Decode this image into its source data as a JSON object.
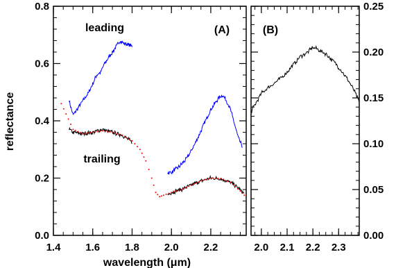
{
  "chart_data": [
    {
      "panel_label": "(A)",
      "type": "line",
      "xlabel": "wavelength (μm)",
      "ylabel": "reflectance",
      "xlim": [
        1.4,
        2.38
      ],
      "ylim": [
        0.0,
        0.8
      ],
      "xticks": [
        "1.4",
        "1.6",
        "1.8",
        "2.0",
        "2.2"
      ],
      "yticks": [
        "0.0",
        "0.2",
        "0.4",
        "0.6",
        "0.8"
      ],
      "grid": false,
      "annotations": [
        {
          "text": "leading",
          "x": 1.6,
          "y": 0.71
        },
        {
          "text": "trailing",
          "x": 1.6,
          "y": 0.24
        }
      ],
      "series": [
        {
          "label": "leading",
          "color": "#0000ff",
          "segments": [
            {
              "x": [
                1.48,
                1.5,
                1.52,
                1.55,
                1.58,
                1.6,
                1.62,
                1.64,
                1.66,
                1.68,
                1.7,
                1.72,
                1.74,
                1.76,
                1.78,
                1.8
              ],
              "y": [
                0.47,
                0.42,
                0.44,
                0.47,
                0.5,
                0.53,
                0.56,
                0.57,
                0.6,
                0.62,
                0.64,
                0.66,
                0.68,
                0.67,
                0.665,
                0.66
              ]
            },
            {
              "x": [
                1.98,
                2.0,
                2.04,
                2.08,
                2.12,
                2.16,
                2.2,
                2.24,
                2.26,
                2.28,
                2.3,
                2.32,
                2.34,
                2.36
              ],
              "y": [
                0.22,
                0.22,
                0.24,
                0.27,
                0.32,
                0.38,
                0.44,
                0.48,
                0.49,
                0.47,
                0.44,
                0.39,
                0.34,
                0.31
              ]
            }
          ]
        },
        {
          "label": "trailing",
          "color": "#000000",
          "segments": [
            {
              "x": [
                1.48,
                1.5,
                1.55,
                1.6,
                1.65,
                1.7,
                1.75,
                1.8
              ],
              "y": [
                0.37,
                0.36,
                0.355,
                0.36,
                0.37,
                0.36,
                0.35,
                0.325
              ]
            },
            {
              "x": [
                1.98,
                2.0,
                2.05,
                2.1,
                2.15,
                2.2,
                2.25,
                2.3,
                2.34,
                2.37
              ],
              "y": [
                0.14,
                0.15,
                0.16,
                0.175,
                0.19,
                0.2,
                0.198,
                0.185,
                0.165,
                0.145
              ]
            }
          ]
        },
        {
          "label": "dotted",
          "color": "#ff0000",
          "style": "dotted",
          "x": [
            1.44,
            1.5,
            1.55,
            1.6,
            1.65,
            1.7,
            1.75,
            1.8,
            1.84,
            1.87,
            1.9,
            1.92,
            1.94,
            1.96,
            2.0,
            2.05,
            2.1,
            2.15,
            2.2,
            2.25,
            2.3,
            2.35,
            2.37
          ],
          "y": [
            0.46,
            0.37,
            0.355,
            0.36,
            0.365,
            0.36,
            0.35,
            0.33,
            0.3,
            0.26,
            0.2,
            0.15,
            0.135,
            0.14,
            0.15,
            0.16,
            0.175,
            0.19,
            0.2,
            0.198,
            0.185,
            0.155,
            0.14
          ]
        }
      ]
    },
    {
      "panel_label": "(B)",
      "type": "line",
      "xlim": [
        1.96,
        2.38
      ],
      "ylim": [
        0.0,
        0.25
      ],
      "xticks": [
        "2.0",
        "2.1",
        "2.2",
        "2.3"
      ],
      "yticks": [
        "0.00",
        "0.05",
        "0.10",
        "0.15",
        "0.20",
        "0.25"
      ],
      "grid": false,
      "series": [
        {
          "color": "#000000",
          "x": [
            1.96,
            1.98,
            2.0,
            2.03,
            2.06,
            2.09,
            2.12,
            2.15,
            2.18,
            2.2,
            2.22,
            2.25,
            2.28,
            2.31,
            2.34,
            2.36,
            2.38
          ],
          "y": [
            0.135,
            0.145,
            0.155,
            0.162,
            0.168,
            0.175,
            0.185,
            0.195,
            0.2,
            0.205,
            0.203,
            0.198,
            0.19,
            0.18,
            0.168,
            0.158,
            0.145
          ]
        }
      ]
    }
  ]
}
